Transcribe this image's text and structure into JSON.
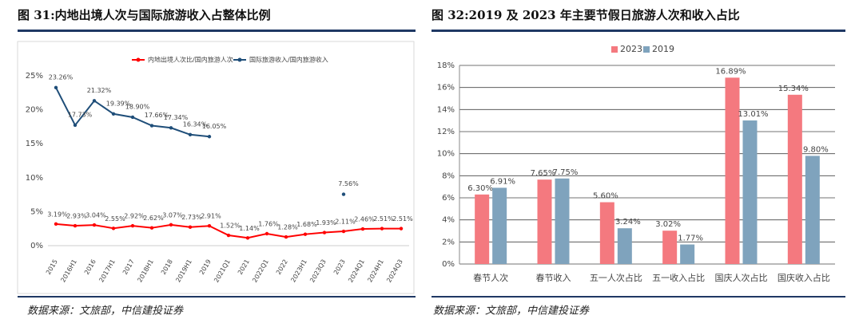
{
  "chart_data": [
    {
      "type": "line",
      "title": "图 31:内地出境人次与国际旅游收入占整体比例",
      "source": "数据来源：文旅部，中信建投证券",
      "categories": [
        "2015",
        "2016H1",
        "2016",
        "2017H1",
        "2017",
        "2018H1",
        "2018",
        "2019H1",
        "2019",
        "2021Q1",
        "2021",
        "2022Q1",
        "2022",
        "2023H1",
        "2023Q3",
        "2023",
        "2024Q1",
        "2024H1",
        "2024Q3"
      ],
      "series": [
        {
          "name": "内地出境人次比/国内旅游人次",
          "color": "#ff0000",
          "values": [
            3.19,
            2.93,
            3.04,
            2.55,
            2.92,
            2.62,
            3.07,
            2.73,
            2.91,
            1.52,
            1.14,
            1.76,
            1.28,
            1.68,
            1.93,
            2.11,
            2.46,
            2.51,
            2.51
          ],
          "value_labels": [
            "3.19%",
            "2.93%",
            "3.04%",
            "2.55%",
            "2.92%",
            "2.62%",
            "3.07%",
            "2.73%",
            "2.91%",
            "1.52%",
            "1.14%",
            "1.76%",
            "1.28%",
            "1.68%",
            "1.93%",
            "2.11%",
            "2.46%",
            "2.51%",
            "2.51%"
          ]
        },
        {
          "name": "国际旅游收入/国内旅游收入",
          "color": "#1f4e79",
          "values": [
            23.26,
            17.73,
            21.32,
            19.39,
            18.9,
            17.66,
            17.34,
            16.34,
            16.05,
            null,
            null,
            null,
            null,
            null,
            null,
            7.56,
            null,
            null,
            null
          ],
          "value_labels": [
            "23.26%",
            "17.73%",
            "21.32%",
            "19.39%",
            "18.90%",
            "17.66%",
            "17.34%",
            "16.34%",
            "16.05%",
            null,
            null,
            null,
            null,
            null,
            null,
            "7.56%",
            null,
            null,
            null
          ]
        }
      ],
      "ylim": [
        0,
        25
      ],
      "yticks": [
        {
          "value": 0,
          "label": "0%"
        },
        {
          "value": 5,
          "label": "5%"
        },
        {
          "value": 10,
          "label": "10%"
        },
        {
          "value": 15,
          "label": "15%"
        },
        {
          "value": 20,
          "label": "20%"
        },
        {
          "value": 25,
          "label": "25%"
        }
      ],
      "grid": false
    },
    {
      "type": "bar",
      "title": "图 32:2019 及 2023 年主要节假日旅游人次和收入占比",
      "source": "数据来源：文旅部，中信建投证券",
      "categories": [
        "春节人次",
        "春节收入",
        "五一人次占比",
        "五一收入占比",
        "国庆人次占比",
        "国庆收入占比"
      ],
      "series": [
        {
          "name": "2023",
          "color": "#f4797f",
          "values": [
            6.3,
            7.65,
            5.6,
            3.02,
            16.89,
            15.34
          ],
          "value_labels": [
            "6.30%",
            "7.65%",
            "5.60%",
            "3.02%",
            "16.89%",
            "15.34%"
          ]
        },
        {
          "name": "2019",
          "color": "#7fa3bd",
          "values": [
            6.91,
            7.75,
            3.24,
            1.77,
            13.01,
            9.8
          ],
          "value_labels": [
            "6.91%",
            "7.75%",
            "3.24%",
            "1.77%",
            "13.01%",
            "9.80%"
          ]
        }
      ],
      "ylim": [
        0,
        18
      ],
      "yticks": [
        {
          "value": 0,
          "label": "0%"
        },
        {
          "value": 2,
          "label": "2%"
        },
        {
          "value": 4,
          "label": "4%"
        },
        {
          "value": 6,
          "label": "6%"
        },
        {
          "value": 8,
          "label": "8%"
        },
        {
          "value": 10,
          "label": "10%"
        },
        {
          "value": 12,
          "label": "12%"
        },
        {
          "value": 14,
          "label": "14%"
        },
        {
          "value": 16,
          "label": "16%"
        },
        {
          "value": 18,
          "label": "18%"
        }
      ],
      "grid": true
    }
  ]
}
